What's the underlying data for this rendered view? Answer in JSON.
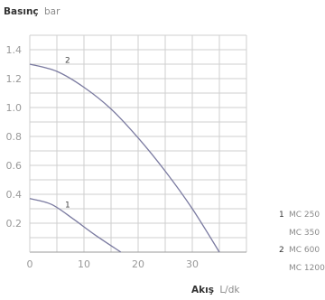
{
  "chart_data": {
    "type": "line",
    "ylabel": {
      "bold": "Basınç",
      "unit": "bar"
    },
    "xlabel": {
      "bold": "Akış",
      "unit": "L/dk"
    },
    "xlim": [
      0,
      40
    ],
    "ylim": [
      0,
      1.5
    ],
    "xticks": [
      0,
      10,
      20,
      30
    ],
    "yticks": [
      0.2,
      0.4,
      0.6,
      0.8,
      1.0,
      1.2,
      1.4
    ],
    "ytick_labels": [
      "0.2",
      "0.4",
      "0.6",
      "0.8",
      "1.0",
      "1.2",
      "1.4"
    ],
    "xtick_labels": [
      "0",
      "10",
      "20",
      "30"
    ],
    "grid": true,
    "series": [
      {
        "name": "1",
        "color": "#7a7aa0",
        "x": [
          0,
          4,
          8,
          12,
          16.8
        ],
        "y": [
          0.37,
          0.33,
          0.23,
          0.12,
          0.0
        ]
      },
      {
        "name": "2",
        "color": "#7a7aa0",
        "x": [
          0,
          5,
          10,
          15,
          20,
          25,
          30,
          35
        ],
        "y": [
          1.3,
          1.25,
          1.14,
          0.99,
          0.79,
          0.56,
          0.3,
          0.0
        ]
      }
    ],
    "legend": {
      "placement": "right",
      "groups": [
        {
          "number": "1",
          "items": [
            "MC 250",
            "MC 350"
          ]
        },
        {
          "number": "2",
          "items": [
            "MC 600",
            "MC 1200"
          ]
        }
      ]
    }
  }
}
